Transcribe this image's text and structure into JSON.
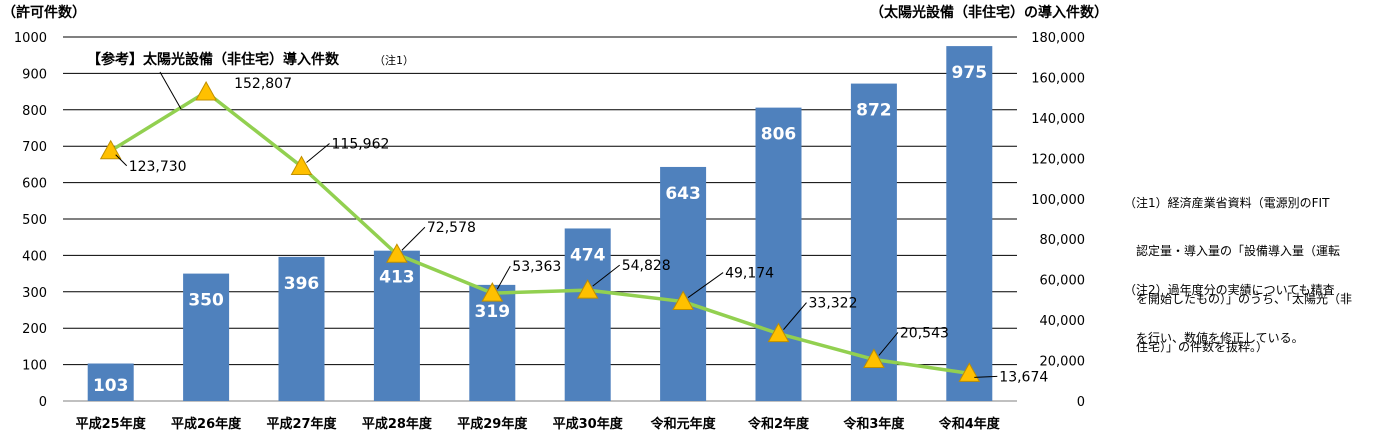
{
  "chart_data": {
    "type": "bar",
    "left_axis_title": "（許可件数）",
    "right_axis_title": "（太陽光設備（非住宅）の導入件数）",
    "categories": [
      "平成25年度",
      "平成26年度",
      "平成27年度",
      "平成28年度",
      "平成29年度",
      "平成30年度",
      "令和元年度",
      "令和2年度",
      "令和3年度",
      "令和4年度"
    ],
    "bar_series": {
      "name": "許可件数",
      "color": "#4f81bd",
      "values": [
        103,
        350,
        396,
        413,
        319,
        474,
        643,
        806,
        872,
        975
      ],
      "ylim": [
        0,
        1000
      ]
    },
    "line_series": {
      "name": "【参考】太陽光設備（非住宅）導入件数",
      "name_note": "（注1）",
      "color": "#92d050",
      "marker_color": "#ffc000",
      "values": [
        123730,
        152807,
        115962,
        72578,
        53363,
        54828,
        49174,
        33322,
        20543,
        13674
      ],
      "labels": [
        "123,730",
        "152,807",
        "115,962",
        "72,578",
        "53,363",
        "54,828",
        "49,174",
        "33,322",
        "20,543",
        "13,674"
      ],
      "ylim": [
        0,
        180000
      ]
    },
    "left_ticks": [
      "0",
      "100",
      "200",
      "300",
      "400",
      "500",
      "600",
      "700",
      "800",
      "900",
      "1000"
    ],
    "right_ticks": [
      "0",
      "20,000",
      "40,000",
      "60,000",
      "80,000",
      "100,000",
      "120,000",
      "140,000",
      "160,000",
      "180,000"
    ],
    "grid": true
  },
  "notes": {
    "note1": [
      "（注1）経済産業省資料（電源別のFIT",
      "　認定量・導入量の「設備導入量（運転",
      "　を開始したもの）」のうち、「太陽光（非",
      "　住宅）」の件数を抜粋。）"
    ],
    "note2": [
      "（注2）過年度分の実績についても精査",
      "　を行い、数値を修正している。"
    ]
  }
}
